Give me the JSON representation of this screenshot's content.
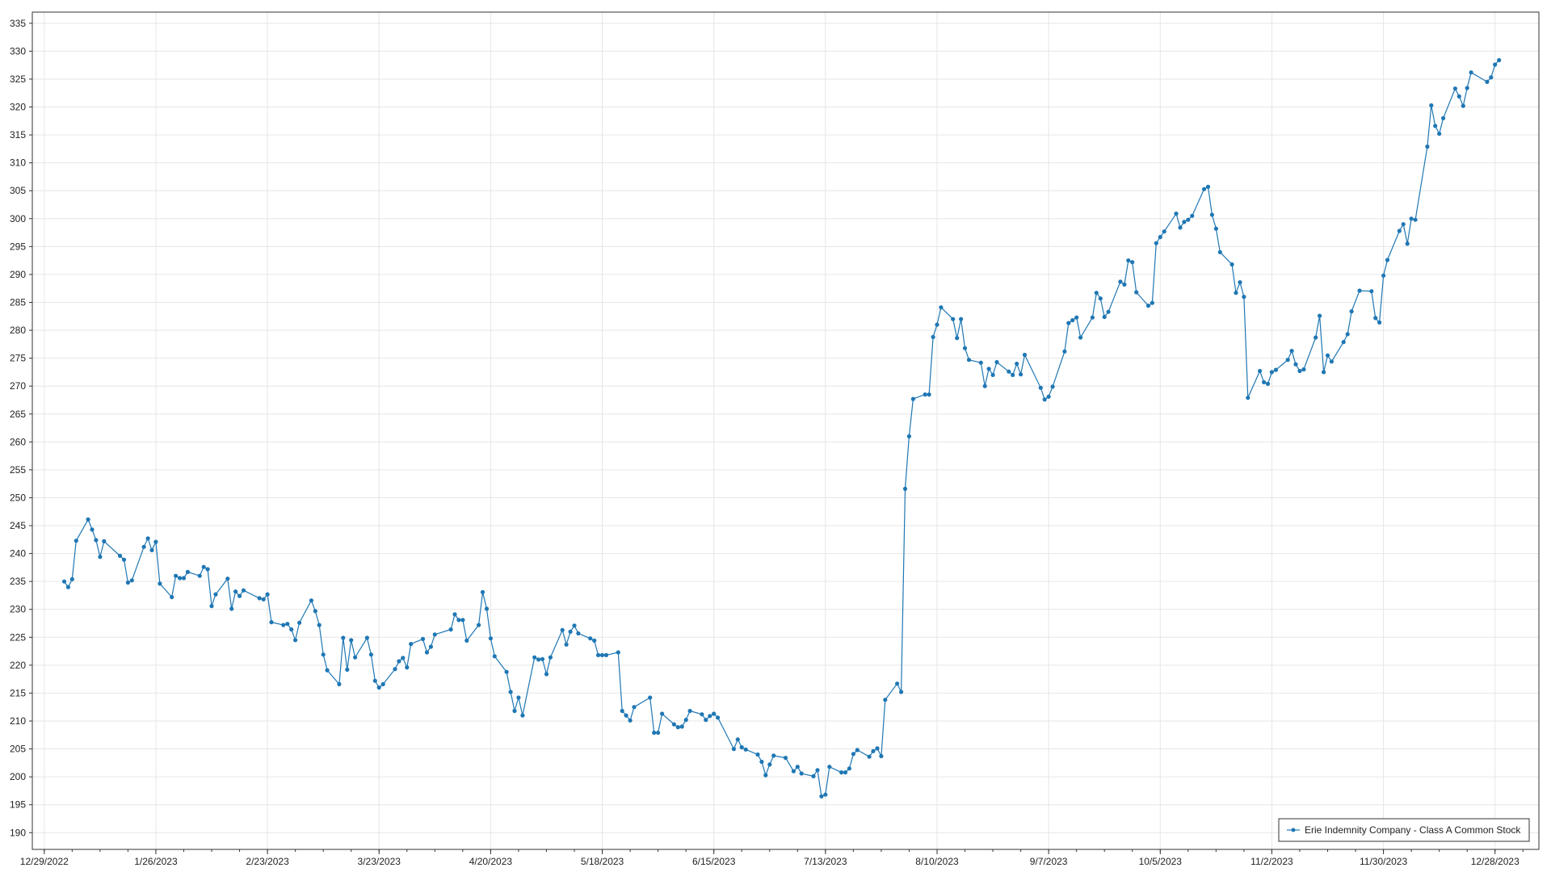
{
  "chart_data": {
    "type": "line",
    "title": "",
    "xlabel": "",
    "ylabel": "",
    "ylim": [
      187,
      337
    ],
    "xlim": [
      "2022-12-26",
      "2024-01-08"
    ],
    "yticks": [
      190,
      195,
      200,
      205,
      210,
      215,
      220,
      225,
      230,
      235,
      240,
      245,
      250,
      255,
      260,
      265,
      270,
      275,
      280,
      285,
      290,
      295,
      300,
      305,
      310,
      315,
      320,
      325,
      330,
      335
    ],
    "xticks": [
      {
        "date": "2022-12-29",
        "label": "12/29/2022"
      },
      {
        "date": "2023-01-26",
        "label": "1/26/2023"
      },
      {
        "date": "2023-02-23",
        "label": "2/23/2023"
      },
      {
        "date": "2023-03-23",
        "label": "3/23/2023"
      },
      {
        "date": "2023-04-20",
        "label": "4/20/2023"
      },
      {
        "date": "2023-05-18",
        "label": "5/18/2023"
      },
      {
        "date": "2023-06-15",
        "label": "6/15/2023"
      },
      {
        "date": "2023-07-13",
        "label": "7/13/2023"
      },
      {
        "date": "2023-08-10",
        "label": "8/10/2023"
      },
      {
        "date": "2023-09-07",
        "label": "9/7/2023"
      },
      {
        "date": "2023-10-05",
        "label": "10/5/2023"
      },
      {
        "date": "2023-11-02",
        "label": "11/2/2023"
      },
      {
        "date": "2023-11-30",
        "label": "11/30/2023"
      },
      {
        "date": "2023-12-28",
        "label": "12/28/2023"
      }
    ],
    "grid": true,
    "legend_position": "bottom-right",
    "colors": {
      "line": "#1f77b4",
      "marker": "#1f77b4",
      "grid": "#e6e6e6",
      "axis": "#333333"
    },
    "series": [
      {
        "name": "Erie Indemnity Company - Class A Common Stock",
        "points": [
          [
            "2023-01-03",
            235.0
          ],
          [
            "2023-01-04",
            234.0
          ],
          [
            "2023-01-05",
            235.4
          ],
          [
            "2023-01-06",
            242.3
          ],
          [
            "2023-01-09",
            246.1
          ],
          [
            "2023-01-10",
            244.3
          ],
          [
            "2023-01-11",
            242.4
          ],
          [
            "2023-01-12",
            239.4
          ],
          [
            "2023-01-13",
            242.2
          ],
          [
            "2023-01-17",
            239.6
          ],
          [
            "2023-01-18",
            238.9
          ],
          [
            "2023-01-19",
            234.8
          ],
          [
            "2023-01-20",
            235.2
          ],
          [
            "2023-01-23",
            241.2
          ],
          [
            "2023-01-24",
            242.7
          ],
          [
            "2023-01-25",
            240.6
          ],
          [
            "2023-01-26",
            242.1
          ],
          [
            "2023-01-27",
            234.6
          ],
          [
            "2023-01-30",
            232.2
          ],
          [
            "2023-01-31",
            236.0
          ],
          [
            "2023-02-01",
            235.6
          ],
          [
            "2023-02-02",
            235.6
          ],
          [
            "2023-02-03",
            236.7
          ],
          [
            "2023-02-06",
            236.0
          ],
          [
            "2023-02-07",
            237.6
          ],
          [
            "2023-02-08",
            237.2
          ],
          [
            "2023-02-09",
            230.6
          ],
          [
            "2023-02-10",
            232.7
          ],
          [
            "2023-02-13",
            235.5
          ],
          [
            "2023-02-14",
            230.1
          ],
          [
            "2023-02-15",
            233.2
          ],
          [
            "2023-02-16",
            232.4
          ],
          [
            "2023-02-17",
            233.4
          ],
          [
            "2023-02-21",
            232.0
          ],
          [
            "2023-02-22",
            231.8
          ],
          [
            "2023-02-23",
            232.7
          ],
          [
            "2023-02-24",
            227.7
          ],
          [
            "2023-02-27",
            227.2
          ],
          [
            "2023-02-28",
            227.4
          ],
          [
            "2023-03-01",
            226.4
          ],
          [
            "2023-03-02",
            224.5
          ],
          [
            "2023-03-03",
            227.6
          ],
          [
            "2023-03-06",
            231.6
          ],
          [
            "2023-03-07",
            229.7
          ],
          [
            "2023-03-08",
            227.2
          ],
          [
            "2023-03-09",
            221.9
          ],
          [
            "2023-03-10",
            219.1
          ],
          [
            "2023-03-13",
            216.6
          ],
          [
            "2023-03-14",
            224.9
          ],
          [
            "2023-03-15",
            219.2
          ],
          [
            "2023-03-16",
            224.5
          ],
          [
            "2023-03-17",
            221.4
          ],
          [
            "2023-03-20",
            224.9
          ],
          [
            "2023-03-21",
            221.9
          ],
          [
            "2023-03-22",
            217.2
          ],
          [
            "2023-03-23",
            216.0
          ],
          [
            "2023-03-24",
            216.6
          ],
          [
            "2023-03-27",
            219.3
          ],
          [
            "2023-03-28",
            220.7
          ],
          [
            "2023-03-29",
            221.3
          ],
          [
            "2023-03-30",
            219.6
          ],
          [
            "2023-03-31",
            223.8
          ],
          [
            "2023-04-03",
            224.7
          ],
          [
            "2023-04-04",
            222.3
          ],
          [
            "2023-04-05",
            223.3
          ],
          [
            "2023-04-06",
            225.5
          ],
          [
            "2023-04-10",
            226.4
          ],
          [
            "2023-04-11",
            229.1
          ],
          [
            "2023-04-12",
            228.1
          ],
          [
            "2023-04-13",
            228.1
          ],
          [
            "2023-04-14",
            224.4
          ],
          [
            "2023-04-17",
            227.2
          ],
          [
            "2023-04-18",
            233.1
          ],
          [
            "2023-04-19",
            230.1
          ],
          [
            "2023-04-20",
            224.8
          ],
          [
            "2023-04-21",
            221.6
          ],
          [
            "2023-04-24",
            218.8
          ],
          [
            "2023-04-25",
            215.2
          ],
          [
            "2023-04-26",
            211.8
          ],
          [
            "2023-04-27",
            214.2
          ],
          [
            "2023-04-28",
            211.0
          ],
          [
            "2023-05-01",
            221.4
          ],
          [
            "2023-05-02",
            221.0
          ],
          [
            "2023-05-03",
            221.1
          ],
          [
            "2023-05-04",
            218.4
          ],
          [
            "2023-05-05",
            221.4
          ],
          [
            "2023-05-08",
            226.3
          ],
          [
            "2023-05-09",
            223.7
          ],
          [
            "2023-05-10",
            226.0
          ],
          [
            "2023-05-11",
            227.1
          ],
          [
            "2023-05-12",
            225.7
          ],
          [
            "2023-05-15",
            224.8
          ],
          [
            "2023-05-16",
            224.4
          ],
          [
            "2023-05-17",
            221.8
          ],
          [
            "2023-05-18",
            221.8
          ],
          [
            "2023-05-19",
            221.8
          ],
          [
            "2023-05-22",
            222.3
          ],
          [
            "2023-05-23",
            211.8
          ],
          [
            "2023-05-24",
            211.0
          ],
          [
            "2023-05-25",
            210.1
          ],
          [
            "2023-05-26",
            212.5
          ],
          [
            "2023-05-30",
            214.2
          ],
          [
            "2023-05-31",
            207.9
          ],
          [
            "2023-06-01",
            207.9
          ],
          [
            "2023-06-02",
            211.3
          ],
          [
            "2023-06-05",
            209.4
          ],
          [
            "2023-06-06",
            208.9
          ],
          [
            "2023-06-07",
            209.0
          ],
          [
            "2023-06-08",
            210.2
          ],
          [
            "2023-06-09",
            211.8
          ],
          [
            "2023-06-12",
            211.2
          ],
          [
            "2023-06-13",
            210.2
          ],
          [
            "2023-06-14",
            210.9
          ],
          [
            "2023-06-15",
            211.3
          ],
          [
            "2023-06-16",
            210.6
          ],
          [
            "2023-06-20",
            205.0
          ],
          [
            "2023-06-21",
            206.7
          ],
          [
            "2023-06-22",
            205.3
          ],
          [
            "2023-06-23",
            204.9
          ],
          [
            "2023-06-26",
            204.0
          ],
          [
            "2023-06-27",
            202.7
          ],
          [
            "2023-06-28",
            200.3
          ],
          [
            "2023-06-29",
            202.2
          ],
          [
            "2023-06-30",
            203.8
          ],
          [
            "2023-07-03",
            203.4
          ],
          [
            "2023-07-05",
            201.0
          ],
          [
            "2023-07-06",
            201.8
          ],
          [
            "2023-07-07",
            200.6
          ],
          [
            "2023-07-10",
            200.1
          ],
          [
            "2023-07-11",
            201.2
          ],
          [
            "2023-07-12",
            196.5
          ],
          [
            "2023-07-13",
            196.8
          ],
          [
            "2023-07-14",
            201.8
          ],
          [
            "2023-07-17",
            200.8
          ],
          [
            "2023-07-18",
            200.8
          ],
          [
            "2023-07-19",
            201.5
          ],
          [
            "2023-07-20",
            204.1
          ],
          [
            "2023-07-21",
            204.8
          ],
          [
            "2023-07-24",
            203.6
          ],
          [
            "2023-07-25",
            204.6
          ],
          [
            "2023-07-26",
            205.1
          ],
          [
            "2023-07-27",
            203.7
          ],
          [
            "2023-07-28",
            213.8
          ],
          [
            "2023-07-31",
            216.7
          ],
          [
            "2023-08-01",
            215.2
          ],
          [
            "2023-08-02",
            251.6
          ],
          [
            "2023-08-03",
            261.0
          ],
          [
            "2023-08-04",
            267.7
          ],
          [
            "2023-08-07",
            268.5
          ],
          [
            "2023-08-08",
            268.5
          ],
          [
            "2023-08-09",
            278.8
          ],
          [
            "2023-08-10",
            281.0
          ],
          [
            "2023-08-11",
            284.1
          ],
          [
            "2023-08-14",
            282.0
          ],
          [
            "2023-08-15",
            278.6
          ],
          [
            "2023-08-16",
            282.0
          ],
          [
            "2023-08-17",
            276.8
          ],
          [
            "2023-08-18",
            274.7
          ],
          [
            "2023-08-21",
            274.2
          ],
          [
            "2023-08-22",
            270.0
          ],
          [
            "2023-08-23",
            273.1
          ],
          [
            "2023-08-24",
            272.0
          ],
          [
            "2023-08-25",
            274.3
          ],
          [
            "2023-08-28",
            272.6
          ],
          [
            "2023-08-29",
            272.0
          ],
          [
            "2023-08-30",
            274.0
          ],
          [
            "2023-08-31",
            272.1
          ],
          [
            "2023-09-01",
            275.6
          ],
          [
            "2023-09-05",
            269.7
          ],
          [
            "2023-09-06",
            267.6
          ],
          [
            "2023-09-07",
            268.1
          ],
          [
            "2023-09-08",
            269.9
          ],
          [
            "2023-09-11",
            276.2
          ],
          [
            "2023-09-12",
            281.3
          ],
          [
            "2023-09-13",
            281.8
          ],
          [
            "2023-09-14",
            282.3
          ],
          [
            "2023-09-15",
            278.7
          ],
          [
            "2023-09-18",
            282.3
          ],
          [
            "2023-09-19",
            286.7
          ],
          [
            "2023-09-20",
            285.7
          ],
          [
            "2023-09-21",
            282.4
          ],
          [
            "2023-09-22",
            283.3
          ],
          [
            "2023-09-25",
            288.7
          ],
          [
            "2023-09-26",
            288.2
          ],
          [
            "2023-09-27",
            292.5
          ],
          [
            "2023-09-28",
            292.2
          ],
          [
            "2023-09-29",
            286.8
          ],
          [
            "2023-10-02",
            284.4
          ],
          [
            "2023-10-03",
            284.9
          ],
          [
            "2023-10-04",
            295.6
          ],
          [
            "2023-10-05",
            296.7
          ],
          [
            "2023-10-06",
            297.7
          ],
          [
            "2023-10-09",
            300.9
          ],
          [
            "2023-10-10",
            298.4
          ],
          [
            "2023-10-11",
            299.4
          ],
          [
            "2023-10-12",
            299.8
          ],
          [
            "2023-10-13",
            300.5
          ],
          [
            "2023-10-16",
            305.3
          ],
          [
            "2023-10-17",
            305.7
          ],
          [
            "2023-10-18",
            300.7
          ],
          [
            "2023-10-19",
            298.2
          ],
          [
            "2023-10-20",
            294.0
          ],
          [
            "2023-10-23",
            291.8
          ],
          [
            "2023-10-24",
            286.7
          ],
          [
            "2023-10-25",
            288.6
          ],
          [
            "2023-10-26",
            286.0
          ],
          [
            "2023-10-27",
            267.9
          ],
          [
            "2023-10-30",
            272.7
          ],
          [
            "2023-10-31",
            270.7
          ],
          [
            "2023-11-01",
            270.4
          ],
          [
            "2023-11-02",
            272.5
          ],
          [
            "2023-11-03",
            272.9
          ],
          [
            "2023-11-06",
            274.7
          ],
          [
            "2023-11-07",
            276.3
          ],
          [
            "2023-11-08",
            273.9
          ],
          [
            "2023-11-09",
            272.7
          ],
          [
            "2023-11-10",
            273.0
          ],
          [
            "2023-11-13",
            278.7
          ],
          [
            "2023-11-14",
            282.6
          ],
          [
            "2023-11-15",
            272.5
          ],
          [
            "2023-11-16",
            275.5
          ],
          [
            "2023-11-17",
            274.4
          ],
          [
            "2023-11-20",
            277.9
          ],
          [
            "2023-11-21",
            279.3
          ],
          [
            "2023-11-22",
            283.4
          ],
          [
            "2023-11-24",
            287.1
          ],
          [
            "2023-11-27",
            287.0
          ],
          [
            "2023-11-28",
            282.2
          ],
          [
            "2023-11-29",
            281.4
          ],
          [
            "2023-11-30",
            289.8
          ],
          [
            "2023-12-01",
            292.6
          ],
          [
            "2023-12-04",
            297.8
          ],
          [
            "2023-12-05",
            299.0
          ],
          [
            "2023-12-06",
            295.5
          ],
          [
            "2023-12-07",
            300.0
          ],
          [
            "2023-12-08",
            299.8
          ],
          [
            "2023-12-11",
            312.9
          ],
          [
            "2023-12-12",
            320.3
          ],
          [
            "2023-12-13",
            316.6
          ],
          [
            "2023-12-14",
            315.2
          ],
          [
            "2023-12-15",
            318.0
          ],
          [
            "2023-12-18",
            323.3
          ],
          [
            "2023-12-19",
            321.9
          ],
          [
            "2023-12-20",
            320.2
          ],
          [
            "2023-12-21",
            323.4
          ],
          [
            "2023-12-22",
            326.2
          ],
          [
            "2023-12-26",
            324.5
          ],
          [
            "2023-12-27",
            325.3
          ],
          [
            "2023-12-28",
            327.6
          ],
          [
            "2023-12-29",
            328.4
          ]
        ]
      }
    ]
  }
}
